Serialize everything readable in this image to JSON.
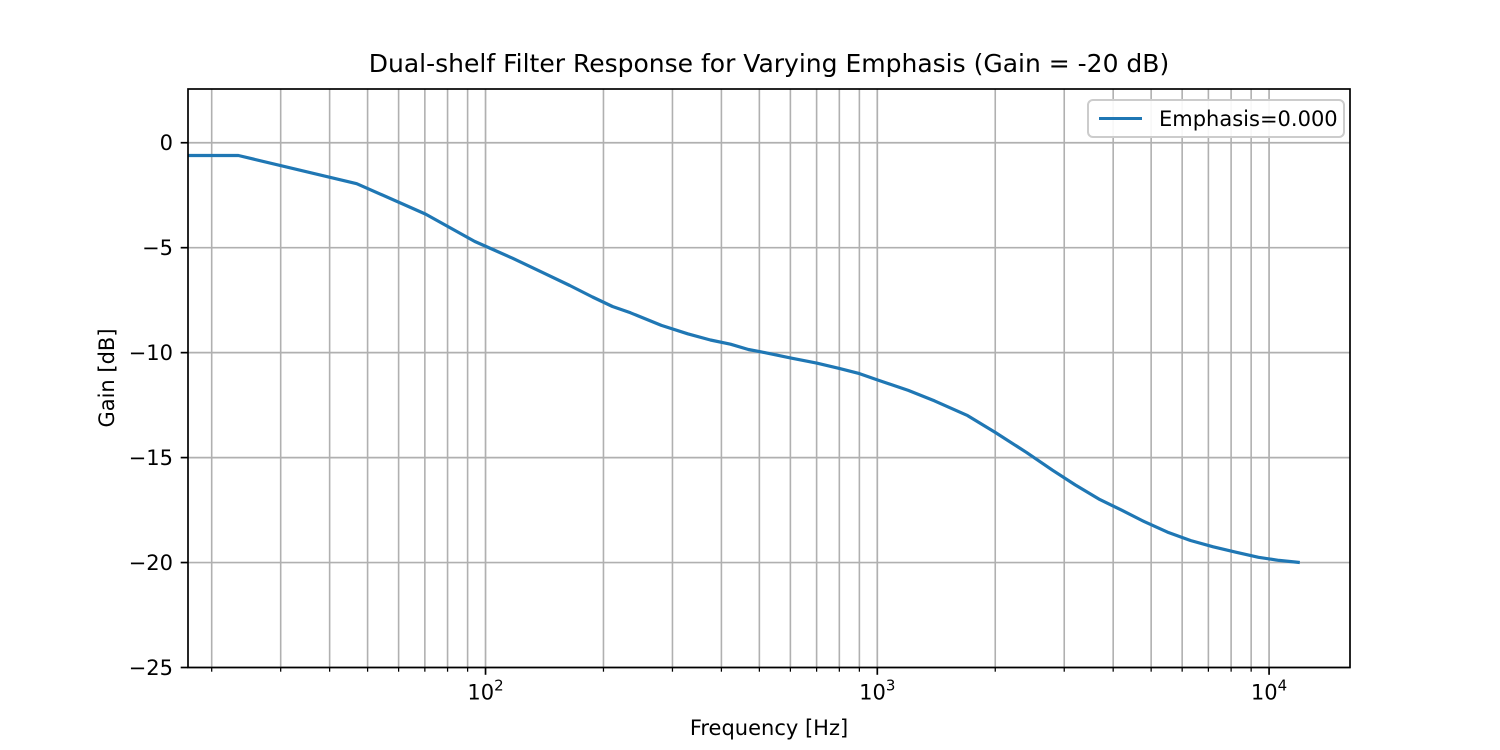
{
  "figure": {
    "background": "#ffffff"
  },
  "chart_data": {
    "type": "line",
    "title": "Dual-shelf Filter Response for Varying Emphasis (Gain = -20 dB)",
    "xlabel": "Frequency [Hz]",
    "ylabel": "Gain [dB]",
    "x_scale": "log",
    "xlim": [
      17.4,
      16090
    ],
    "ylim": [
      -25,
      2.56
    ],
    "grid": "both",
    "legend_position": "upper right",
    "x_major_ticks": [
      {
        "value": 100,
        "mantissa": "10",
        "exponent": "2"
      },
      {
        "value": 1000,
        "mantissa": "10",
        "exponent": "3"
      },
      {
        "value": 10000,
        "mantissa": "10",
        "exponent": "4"
      }
    ],
    "x_minor_ticks": [
      20,
      30,
      40,
      50,
      60,
      70,
      80,
      90,
      200,
      300,
      400,
      500,
      600,
      700,
      800,
      900,
      2000,
      3000,
      4000,
      5000,
      6000,
      7000,
      8000,
      9000
    ],
    "y_ticks": [
      {
        "value": 0,
        "label": "0"
      },
      {
        "value": -5,
        "label": "−5"
      },
      {
        "value": -10,
        "label": "−10"
      },
      {
        "value": -15,
        "label": "−15"
      },
      {
        "value": -20,
        "label": "−20"
      },
      {
        "value": -25,
        "label": "−25"
      }
    ],
    "series": [
      {
        "name": "Emphasis=0.000",
        "color": "#1f77b4",
        "points": [
          [
            17.4,
            -0.61
          ],
          [
            23.4,
            -0.61
          ],
          [
            46.9,
            -1.95
          ],
          [
            70.3,
            -3.4
          ],
          [
            93.8,
            -4.7
          ],
          [
            117.2,
            -5.5
          ],
          [
            140.6,
            -6.2
          ],
          [
            164.1,
            -6.8
          ],
          [
            187.5,
            -7.35
          ],
          [
            210.9,
            -7.8
          ],
          [
            234.4,
            -8.1
          ],
          [
            281.2,
            -8.7
          ],
          [
            328.1,
            -9.1
          ],
          [
            375,
            -9.4
          ],
          [
            421.9,
            -9.6
          ],
          [
            468.8,
            -9.85
          ],
          [
            515.6,
            -10.0
          ],
          [
            600,
            -10.25
          ],
          [
            700,
            -10.5
          ],
          [
            800,
            -10.75
          ],
          [
            900,
            -11.0
          ],
          [
            1000,
            -11.3
          ],
          [
            1200,
            -11.8
          ],
          [
            1400,
            -12.3
          ],
          [
            1700,
            -13.0
          ],
          [
            2000,
            -13.8
          ],
          [
            2400,
            -14.75
          ],
          [
            2800,
            -15.6
          ],
          [
            3200,
            -16.3
          ],
          [
            3700,
            -17.0
          ],
          [
            4200,
            -17.5
          ],
          [
            4800,
            -18.05
          ],
          [
            5500,
            -18.55
          ],
          [
            6300,
            -18.95
          ],
          [
            7200,
            -19.25
          ],
          [
            8200,
            -19.5
          ],
          [
            9400,
            -19.75
          ],
          [
            10600,
            -19.9
          ],
          [
            11977,
            -20.0
          ]
        ]
      }
    ]
  },
  "legend": {
    "entries": [
      {
        "label": "Emphasis=0.000",
        "color": "#1f77b4"
      }
    ]
  },
  "colors": {
    "line": "#1f77b4",
    "grid": "#b0b0b0",
    "spine": "#000000",
    "tick": "#000000",
    "text": "#000000",
    "legend_border": "#cccccc"
  }
}
